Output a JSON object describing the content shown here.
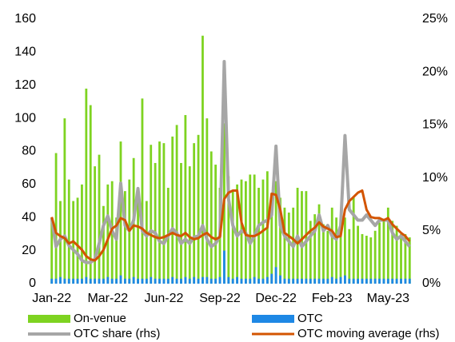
{
  "chart_data": {
    "type": "bar_line",
    "categories": [
      "Jan-22",
      null,
      null,
      null,
      null,
      null,
      null,
      null,
      null,
      null,
      null,
      null,
      null,
      "Mar-22",
      null,
      null,
      null,
      null,
      null,
      null,
      null,
      null,
      null,
      null,
      null,
      null,
      "Jun-22",
      null,
      null,
      null,
      null,
      null,
      null,
      null,
      null,
      null,
      null,
      null,
      null,
      "Sep-22",
      null,
      null,
      null,
      null,
      null,
      null,
      null,
      null,
      null,
      null,
      null,
      null,
      "Dec-22",
      null,
      null,
      null,
      null,
      null,
      null,
      null,
      null,
      null,
      null,
      null,
      null,
      "Feb-23",
      null,
      null,
      null,
      null,
      null,
      null,
      null,
      null,
      null,
      null,
      null,
      null,
      "May-23",
      null,
      null,
      null,
      null,
      null
    ],
    "ylim": [
      0,
      160
    ],
    "yticks": [
      0,
      20,
      40,
      60,
      80,
      100,
      120,
      140,
      160
    ],
    "y2lim": [
      0,
      25
    ],
    "y2ticks": [
      {
        "value": 0,
        "label": "0%"
      },
      {
        "value": 5,
        "label": "5%"
      },
      {
        "value": 10,
        "label": "10%"
      },
      {
        "value": 15,
        "label": "15%"
      },
      {
        "value": 20,
        "label": "20%"
      },
      {
        "value": 25,
        "label": "25%"
      }
    ],
    "series": [
      {
        "name": "On-venue",
        "type": "bar",
        "color": "#7ed321",
        "values": [
          40,
          79,
          50,
          100,
          63,
          50,
          52,
          60,
          118,
          108,
          71,
          78,
          47,
          60,
          62,
          40,
          86,
          56,
          63,
          76,
          54,
          112,
          50,
          84,
          73,
          86,
          85,
          58,
          89,
          96,
          73,
          102,
          71,
          85,
          90,
          150,
          100,
          80,
          72,
          58,
          97,
          65,
          56,
          60,
          63,
          62,
          66,
          66,
          58,
          63,
          68,
          55,
          62,
          52,
          46,
          43,
          46,
          58,
          56,
          56,
          38,
          42,
          48,
          36,
          32,
          46,
          40,
          36,
          40,
          33,
          52,
          35,
          30,
          29,
          28,
          32,
          37,
          38,
          46,
          38,
          35,
          30,
          30,
          28
        ]
      },
      {
        "name": "OTC",
        "type": "bar",
        "color": "#1e88e5",
        "values": [
          3,
          3,
          4,
          3,
          3,
          3,
          3,
          3,
          4,
          3,
          3,
          3,
          3,
          4,
          3,
          3,
          5,
          3,
          3,
          4,
          3,
          3,
          3,
          4,
          3,
          3,
          3,
          3,
          4,
          3,
          3,
          4,
          3,
          4,
          3,
          4,
          4,
          3,
          3,
          4,
          20,
          4,
          3,
          4,
          3,
          3,
          3,
          4,
          3,
          3,
          4,
          6,
          10,
          5,
          3,
          3,
          3,
          3,
          3,
          3,
          3,
          3,
          3,
          3,
          3,
          4,
          3,
          4,
          5,
          3,
          3,
          3,
          3,
          3,
          3,
          3,
          3,
          3,
          3,
          3,
          3,
          3,
          3,
          3
        ]
      },
      {
        "name": "OTC share (rhs)",
        "type": "line",
        "axis": "y2",
        "color": "#a6a6a6",
        "values": [
          6.2,
          3.5,
          4.2,
          4.5,
          3.6,
          3.2,
          2.8,
          2.2,
          2.0,
          2.0,
          2.3,
          3.8,
          5.5,
          6.4,
          5.0,
          4.2,
          9.5,
          5.5,
          5.0,
          6.0,
          9.0,
          5.0,
          4.5,
          5.0,
          4.8,
          4.0,
          3.8,
          4.5,
          5.2,
          4.8,
          3.8,
          4.2,
          3.8,
          4.4,
          4.5,
          5.5,
          4.2,
          3.5,
          3.8,
          4.5,
          21.0,
          8.0,
          5.5,
          4.5,
          5.0,
          4.8,
          3.8,
          4.5,
          5.5,
          5.8,
          6.0,
          6.5,
          13.0,
          5.5,
          4.5,
          4.0,
          3.5,
          4.5,
          3.5,
          4.0,
          4.5,
          5.0,
          6.5,
          5.0,
          5.5,
          4.5,
          4.2,
          5.5,
          14.0,
          7.0,
          6.5,
          6.0,
          6.0,
          6.5,
          6.0,
          5.5,
          6.0,
          6.0,
          6.0,
          4.8,
          4.2,
          4.5,
          4.0,
          3.5
        ]
      },
      {
        "name": "OTC moving average (rhs)",
        "type": "line",
        "axis": "y2",
        "color": "#d35400",
        "values": [
          6.3,
          4.8,
          4.5,
          4.3,
          3.8,
          4.0,
          3.6,
          3.2,
          2.6,
          2.3,
          2.2,
          2.6,
          3.2,
          4.2,
          5.2,
          5.5,
          6.2,
          6.0,
          5.0,
          5.5,
          5.4,
          5.2,
          4.8,
          4.6,
          4.4,
          4.3,
          4.4,
          4.6,
          4.8,
          4.6,
          4.5,
          4.8,
          4.4,
          4.2,
          4.3,
          4.6,
          4.8,
          4.4,
          4.2,
          4.4,
          8.0,
          8.6,
          8.8,
          8.8,
          5.8,
          4.6,
          4.5,
          4.5,
          4.7,
          5.0,
          5.3,
          8.5,
          8.4,
          7.0,
          4.8,
          4.5,
          4.2,
          3.8,
          4.2,
          4.6,
          5.0,
          5.3,
          5.8,
          5.4,
          5.2,
          5.0,
          4.4,
          4.5,
          7.0,
          7.8,
          8.2,
          8.6,
          8.8,
          7.0,
          6.3,
          6.2,
          6.2,
          6.0,
          6.2,
          5.6,
          5.2,
          4.8,
          4.5,
          4.0
        ]
      }
    ]
  }
}
